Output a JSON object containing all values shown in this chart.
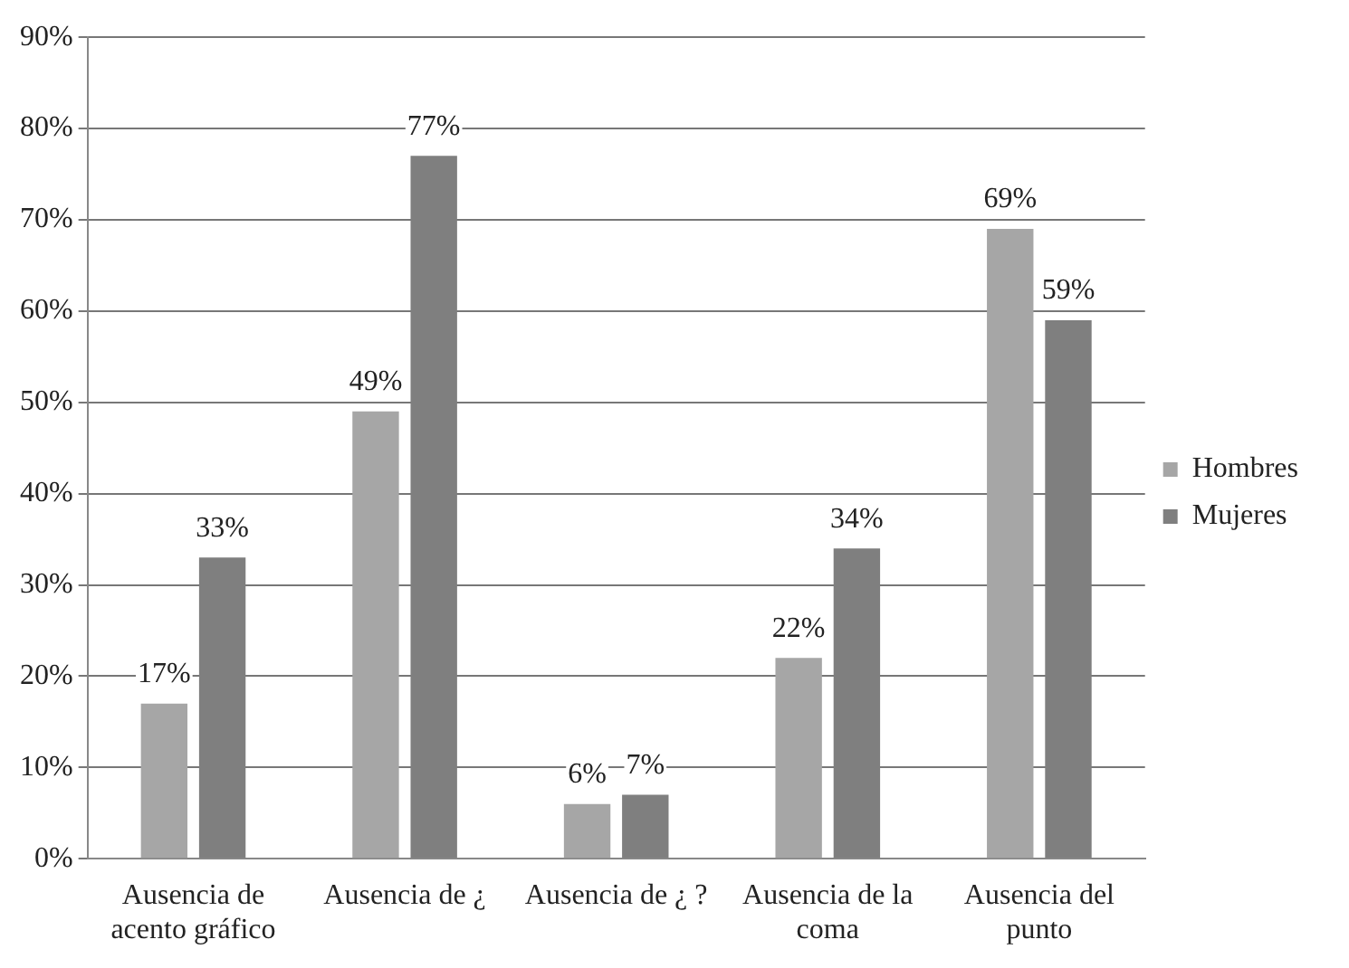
{
  "chart_data": {
    "type": "bar",
    "categories": [
      "Ausencia de\nacento gráfico",
      "Ausencia de ¿",
      "Ausencia de ¿ ?",
      "Ausencia de la\ncoma",
      "Ausencia del\npunto"
    ],
    "series": [
      {
        "name": "Hombres",
        "color": "#a6a6a6",
        "values": [
          17,
          49,
          6,
          22,
          69
        ],
        "value_labels": [
          "17%",
          "49%",
          "6%",
          "22%",
          "69%"
        ]
      },
      {
        "name": "Mujeres",
        "color": "#7f7f7f",
        "values": [
          33,
          77,
          7,
          34,
          59
        ],
        "value_labels": [
          "33%",
          "77%",
          "7%",
          "34%",
          "59%"
        ]
      }
    ],
    "ylim": [
      0,
      90
    ],
    "yticks": [
      {
        "value": 0,
        "label": "0%"
      },
      {
        "value": 10,
        "label": "10%"
      },
      {
        "value": 20,
        "label": "20%"
      },
      {
        "value": 30,
        "label": "30%"
      },
      {
        "value": 40,
        "label": "40%"
      },
      {
        "value": 50,
        "label": "50%"
      },
      {
        "value": 60,
        "label": "60%"
      },
      {
        "value": 70,
        "label": "70%"
      },
      {
        "value": 80,
        "label": "80%"
      },
      {
        "value": 90,
        "label": "90%"
      }
    ],
    "grid": "y",
    "legend": "right"
  }
}
